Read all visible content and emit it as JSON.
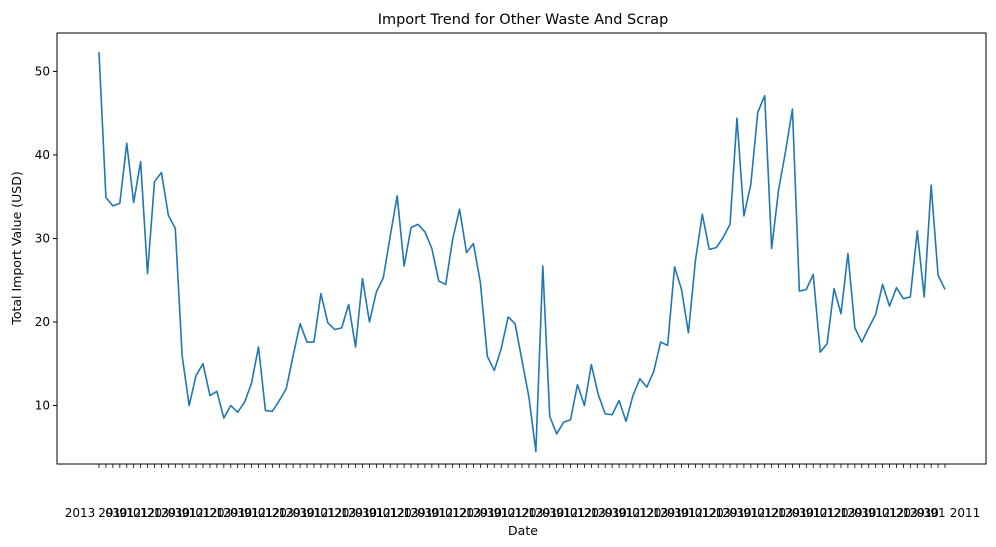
{
  "chart_data": {
    "type": "line",
    "title": "Import Trend for Other Waste And Scrap",
    "xlabel": "Date",
    "ylabel": "Total Import Value (USD)",
    "x_tick_labels_note": "overlapping date tick labels",
    "x_tick_first": "2013",
    "x_tick_last": "2011",
    "yticks": [
      10,
      20,
      30,
      40,
      50
    ],
    "ylim": [
      3.0,
      54.6
    ],
    "grid": false,
    "series": [
      {
        "color": "#1f77b4",
        "values": [
          52.3,
          34.9,
          33.9,
          34.2,
          41.4,
          34.3,
          39.2,
          25.8,
          36.8,
          37.9,
          32.8,
          31.2,
          15.9,
          10.0,
          13.6,
          15.0,
          11.2,
          11.7,
          8.5,
          10.0,
          9.2,
          10.4,
          12.7,
          17.0,
          9.4,
          9.3,
          10.6,
          12.0,
          16.0,
          19.8,
          17.6,
          17.6,
          23.4,
          19.9,
          19.1,
          19.3,
          22.1,
          17.0,
          25.2,
          20.0,
          23.6,
          25.3,
          30.3,
          35.1,
          26.7,
          31.3,
          31.7,
          30.8,
          28.8,
          24.9,
          24.5,
          29.9,
          33.5,
          28.3,
          29.4,
          24.7,
          15.9,
          14.2,
          16.8,
          20.6,
          19.8,
          15.4,
          11.0,
          4.5,
          26.7,
          8.7,
          6.6,
          8.0,
          8.3,
          12.5,
          10.0,
          14.9,
          11.3,
          9.0,
          8.9,
          10.6,
          8.1,
          11.2,
          13.2,
          12.2,
          14.1,
          17.6,
          17.2,
          26.6,
          23.9,
          18.7,
          27.3,
          32.9,
          28.7,
          28.9,
          30.1,
          31.7,
          44.4,
          32.7,
          36.5,
          45.1,
          47.1,
          28.8,
          35.8,
          40.4,
          45.5,
          23.7,
          23.9,
          25.7,
          16.4,
          17.4,
          24.0,
          21.0,
          28.2,
          19.3,
          17.6,
          19.3,
          20.9,
          24.5,
          21.9,
          24.1,
          22.8,
          23.0,
          30.9,
          23.0,
          36.4,
          25.6,
          23.9
        ]
      }
    ]
  }
}
